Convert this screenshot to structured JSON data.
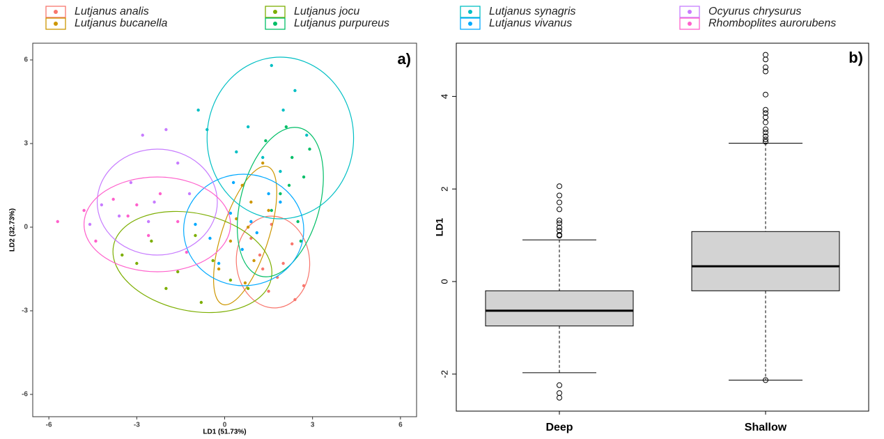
{
  "chart_data": [
    {
      "type": "scatter",
      "xlabel": "LD1 (51.73%)",
      "ylabel": "LD2 (32.73%)",
      "annotation": "a)",
      "xlim": [
        -6.55,
        6.55
      ],
      "ylim": [
        -6.8,
        6.6
      ],
      "xticks": [
        -6,
        -3,
        0,
        3,
        6
      ],
      "yticks": [
        -6,
        -3,
        0,
        3,
        6
      ],
      "grid": false,
      "series": [
        {
          "name": "Lutjanus analis",
          "color": "#F8766D",
          "x": [
            1.2,
            1.8,
            2.3,
            1.5,
            2.7,
            0.9,
            2.0,
            1.6,
            2.4,
            1.3
          ],
          "y": [
            -1.0,
            -1.8,
            -0.6,
            -2.3,
            -2.1,
            -0.4,
            -1.3,
            0.1,
            -2.6,
            -1.5
          ],
          "ellipse": {
            "cx": 1.65,
            "cy": -1.25,
            "rx": 1.25,
            "ry": 1.65,
            "angle": 5
          }
        },
        {
          "name": "Lutjanus bucanella",
          "color": "#CD9600",
          "x": [
            0.6,
            0.9,
            1.3,
            0.2,
            0.4,
            1.0,
            0.7,
            -0.2,
            1.5,
            0.8
          ],
          "y": [
            1.5,
            0.9,
            2.3,
            -0.5,
            0.3,
            -1.2,
            -2.0,
            -1.5,
            0.6,
            0.0
          ],
          "ellipse": {
            "cx": 0.7,
            "cy": -0.3,
            "rx": 0.8,
            "ry": 2.6,
            "angle": -18
          }
        },
        {
          "name": "Lutjanus jocu",
          "color": "#7CAE00",
          "x": [
            -3.5,
            -2.5,
            -1.6,
            -0.8,
            0.2,
            -2.0,
            -1.0,
            -3.0,
            -0.4,
            0.8
          ],
          "y": [
            -1.0,
            -0.5,
            -1.6,
            -2.7,
            -1.9,
            -2.2,
            -0.3,
            -1.3,
            -1.2,
            -2.2
          ],
          "ellipse": {
            "cx": -1.1,
            "cy": -1.25,
            "rx": 2.75,
            "ry": 1.75,
            "angle": -12
          }
        },
        {
          "name": "Lutjanus purpureus",
          "color": "#00BE67",
          "x": [
            2.3,
            2.7,
            1.9,
            2.5,
            1.4,
            2.9,
            2.1,
            1.6,
            2.6,
            2.2
          ],
          "y": [
            2.5,
            1.8,
            1.2,
            0.2,
            3.1,
            2.8,
            3.6,
            0.6,
            -0.5,
            1.5
          ],
          "ellipse": {
            "cx": 1.9,
            "cy": 0.9,
            "rx": 1.35,
            "ry": 2.75,
            "angle": -15
          }
        },
        {
          "name": "Lutjanus synagris",
          "color": "#00BFC4",
          "x": [
            1.6,
            2.0,
            0.8,
            -0.6,
            2.8,
            1.3,
            -0.9,
            0.4,
            2.4,
            1.9
          ],
          "y": [
            5.8,
            4.2,
            3.6,
            3.5,
            3.3,
            2.5,
            4.2,
            2.7,
            4.9,
            2.0
          ],
          "ellipse": {
            "cx": 1.9,
            "cy": 3.2,
            "rx": 2.5,
            "ry": 2.9,
            "angle": 0
          }
        },
        {
          "name": "Lutjanus vivanus",
          "color": "#00A9FF",
          "x": [
            0.2,
            0.9,
            -0.5,
            1.5,
            0.6,
            -1.0,
            1.9,
            0.3,
            -0.2,
            1.1
          ],
          "y": [
            0.5,
            0.2,
            -0.4,
            1.2,
            -0.8,
            0.1,
            0.9,
            1.6,
            -1.3,
            -0.2
          ],
          "ellipse": {
            "cx": 0.65,
            "cy": -0.1,
            "rx": 2.05,
            "ry": 2.0,
            "angle": 0
          }
        },
        {
          "name": "Ocyurus chrysurus",
          "color": "#C77CFF",
          "x": [
            -4.2,
            -3.2,
            -2.4,
            -1.6,
            -2.8,
            -3.6,
            -1.2,
            -2.0,
            -2.6,
            -4.6
          ],
          "y": [
            0.8,
            1.6,
            0.9,
            2.3,
            3.3,
            0.4,
            1.2,
            3.5,
            0.2,
            0.1
          ],
          "ellipse": {
            "cx": -2.3,
            "cy": 0.9,
            "rx": 2.05,
            "ry": 1.9,
            "angle": 0
          }
        },
        {
          "name": "Rhomboplites aurorubens",
          "color": "#FF61CC",
          "x": [
            -5.7,
            -4.4,
            -3.0,
            -2.2,
            -1.6,
            -3.8,
            -2.6,
            -4.8,
            -1.3,
            -3.3
          ],
          "y": [
            0.2,
            -0.5,
            0.8,
            1.2,
            0.2,
            1.0,
            -0.3,
            0.6,
            -0.9,
            0.4
          ],
          "ellipse": {
            "cx": -2.3,
            "cy": 0.1,
            "rx": 2.5,
            "ry": 1.7,
            "angle": 0
          }
        }
      ]
    },
    {
      "type": "box",
      "ylabel": "LD1",
      "annotation": "b)",
      "ylim": [
        -2.8,
        5.15
      ],
      "yticks": [
        -2,
        0,
        2,
        4
      ],
      "categories": [
        "Deep",
        "Shallow"
      ],
      "color": "#D3D3D3",
      "boxes": [
        {
          "whisker_low": -1.97,
          "q1": -0.96,
          "median": -0.63,
          "q3": -0.2,
          "whisker_high": 0.9,
          "outliers": [
            2.06,
            1.86,
            1.71,
            1.56,
            1.32,
            1.26,
            1.17,
            1.1,
            1.01,
            0.99,
            -2.24,
            -2.41,
            -2.51
          ]
        },
        {
          "whisker_low": -2.13,
          "q1": -0.2,
          "median": 0.33,
          "q3": 1.08,
          "whisker_high": 2.99,
          "outliers": [
            4.9,
            4.8,
            4.63,
            4.54,
            4.04,
            3.71,
            3.64,
            3.55,
            3.44,
            3.29,
            3.22,
            3.14,
            3.07,
            3.02,
            -2.13
          ]
        }
      ]
    }
  ]
}
